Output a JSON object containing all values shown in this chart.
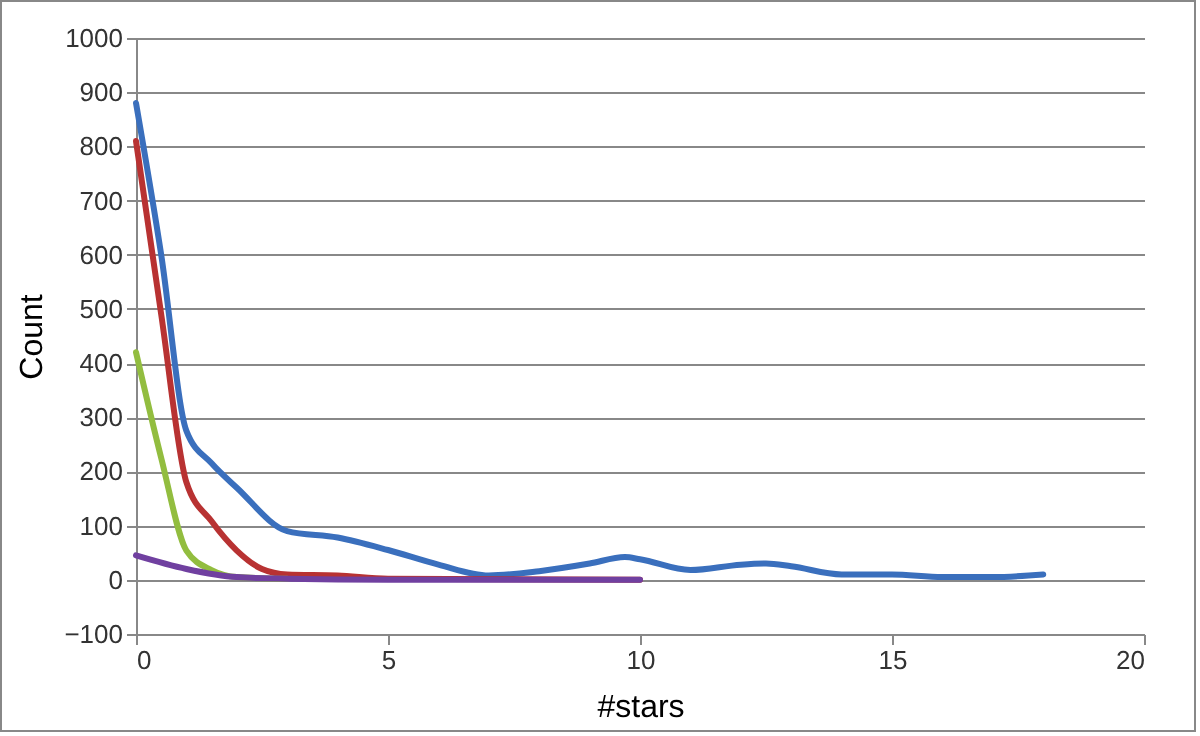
{
  "chart_data": {
    "type": "line",
    "xlabel": "#stars",
    "ylabel": "Count",
    "xlim": [
      0,
      20
    ],
    "xticks": [
      0,
      5,
      10,
      15,
      20
    ],
    "ylim": [
      -100,
      1000
    ],
    "yticks": [
      -100,
      0,
      100,
      200,
      300,
      400,
      500,
      600,
      700,
      800,
      900,
      1000
    ],
    "grid": "y",
    "marker": "none",
    "line_style": "solid",
    "series": [
      {
        "color": "#3a6fbd",
        "x": [
          0,
          0.5,
          1,
          1.5,
          2,
          3,
          4,
          5,
          6,
          7,
          8,
          9,
          9.7,
          10,
          11,
          12,
          12.5,
          13,
          14,
          15,
          16,
          17,
          18
        ],
        "values": [
          880,
          600,
          275,
          215,
          170,
          90,
          78,
          55,
          28,
          8,
          16,
          30,
          42,
          38,
          18,
          28,
          30,
          25,
          10,
          10,
          5,
          5,
          10
        ]
      },
      {
        "color": "#b83232",
        "x": [
          0,
          0.5,
          1,
          1.5,
          2,
          2.5,
          3,
          4,
          5,
          10
        ],
        "values": [
          810,
          490,
          180,
          108,
          54,
          20,
          10,
          8,
          2,
          0
        ]
      },
      {
        "color": "#92bd3f",
        "x": [
          0,
          0.5,
          1,
          1.5,
          2,
          3
        ],
        "values": [
          420,
          225,
          54,
          18,
          5,
          2
        ]
      },
      {
        "color": "#7040a0",
        "x": [
          0,
          1,
          2,
          3,
          5,
          10
        ],
        "values": [
          45,
          20,
          5,
          2,
          0,
          0
        ]
      }
    ]
  }
}
